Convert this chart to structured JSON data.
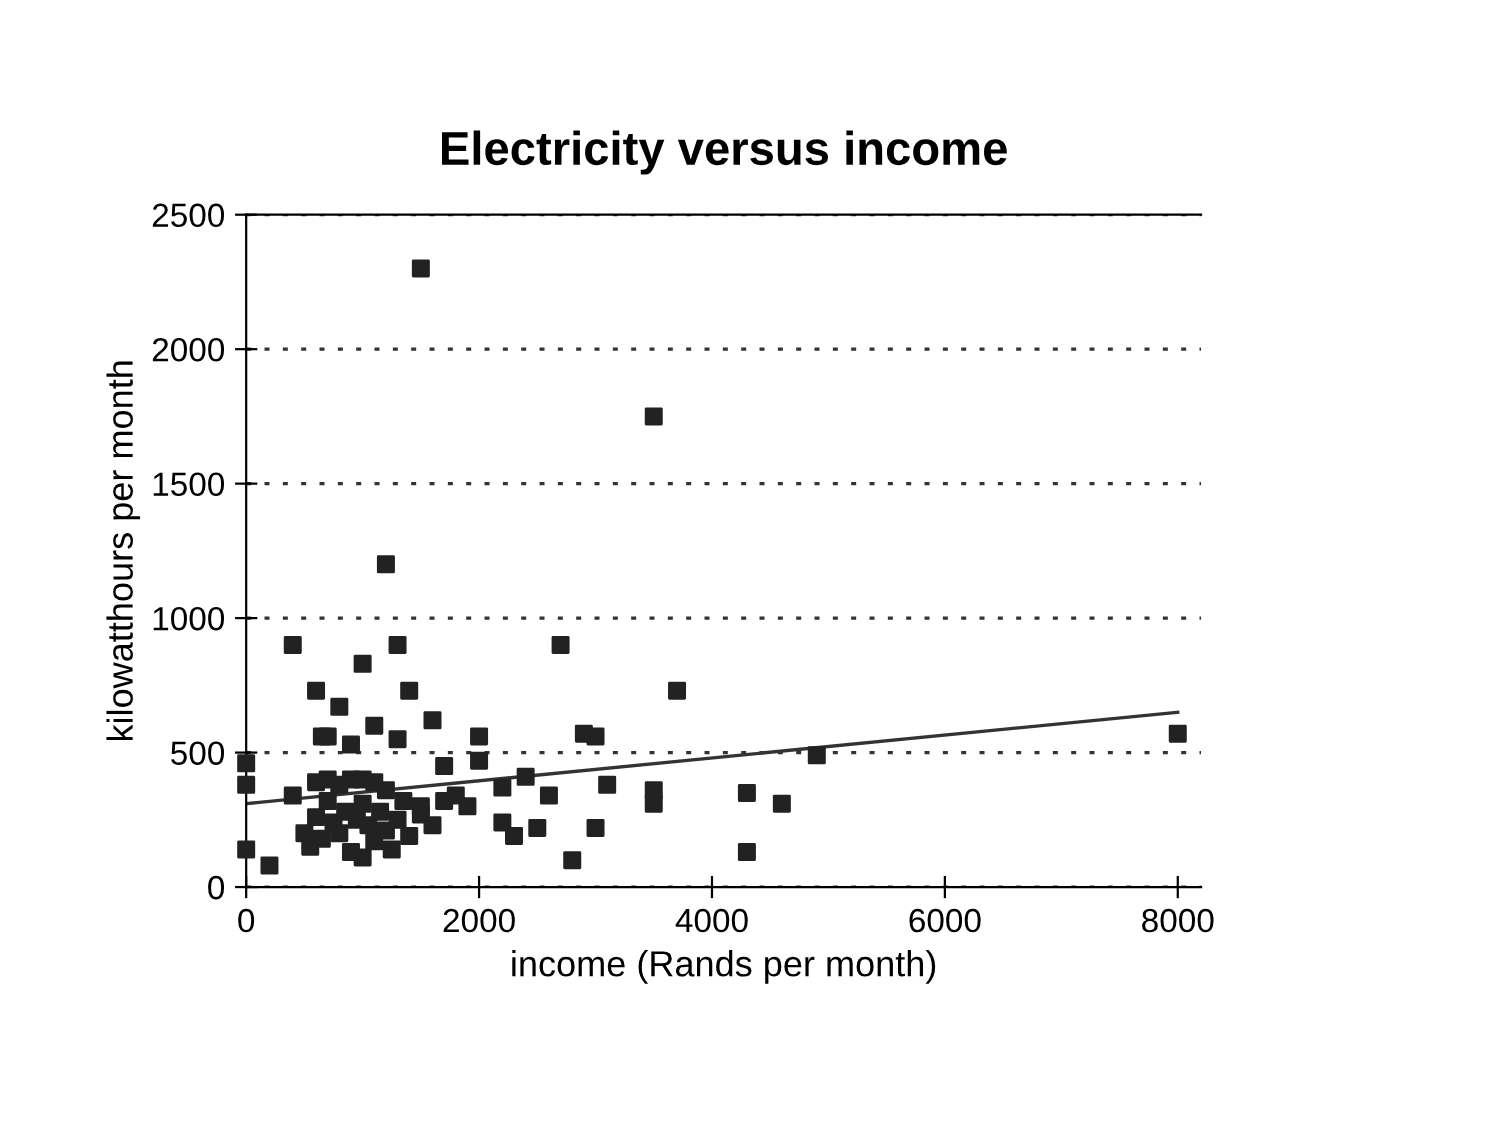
{
  "chart_data": {
    "type": "scatter",
    "title": "Electricity versus income",
    "xlabel": "income (Rands per month)",
    "ylabel": "kilowatthours per month",
    "xlim": [
      0,
      8200
    ],
    "ylim": [
      0,
      2500
    ],
    "xticks": [
      0,
      2000,
      4000,
      6000,
      8000
    ],
    "yticks": [
      0,
      500,
      1000,
      1500,
      2000,
      2500
    ],
    "grid": "y",
    "marker": "square",
    "series": [
      {
        "color": "#222222",
        "x": [
          0,
          0,
          0,
          200,
          400,
          400,
          600,
          700,
          650,
          800,
          900,
          1000,
          1100,
          1200,
          1300,
          1300,
          1500,
          1400,
          1600,
          1700,
          1500,
          2000,
          2000,
          2700,
          2400,
          2200,
          3500,
          3700,
          2900,
          3000,
          3100,
          3500,
          3500,
          2200,
          2300,
          2500,
          2600,
          2800,
          3000,
          4300,
          4300,
          4600,
          4900,
          8000,
          500,
          550,
          600,
          650,
          700,
          750,
          800,
          800,
          850,
          900,
          900,
          950,
          1000,
          1000,
          1050,
          1100,
          1100,
          1150,
          1200,
          1200,
          1250,
          1300,
          1350,
          1400,
          1500,
          1600,
          1700,
          1800,
          1900,
          700,
          600,
          1000
        ],
        "values": [
          460,
          380,
          140,
          80,
          900,
          340,
          730,
          560,
          560,
          670,
          530,
          830,
          600,
          1200,
          900,
          550,
          2300,
          730,
          620,
          450,
          270,
          560,
          470,
          900,
          410,
          370,
          1750,
          730,
          570,
          560,
          380,
          360,
          310,
          240,
          190,
          220,
          340,
          100,
          220,
          350,
          130,
          310,
          490,
          570,
          200,
          150,
          260,
          180,
          320,
          240,
          200,
          380,
          280,
          130,
          400,
          250,
          110,
          310,
          230,
          170,
          390,
          280,
          210,
          360,
          140,
          250,
          320,
          190,
          300,
          230,
          320,
          340,
          300,
          400,
          390,
          400
        ]
      },
      {
        "type": "line",
        "color": "#333333",
        "marker": "none",
        "x": [
          0,
          8000
        ],
        "values": [
          310,
          650
        ]
      }
    ]
  }
}
